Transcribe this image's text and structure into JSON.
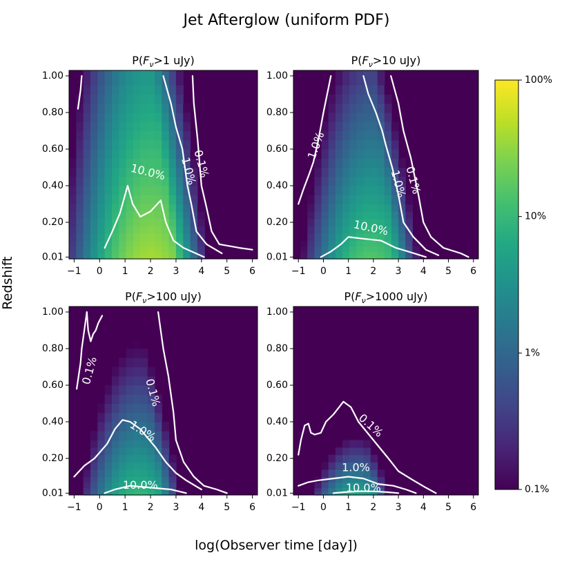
{
  "figure": {
    "title": "Jet Afterglow (uniform PDF)",
    "xlabel": "log(Observer time [day])",
    "ylabel": "Redshift"
  },
  "colorbar": {
    "scale": "log",
    "ticks": [
      {
        "value": 1.0,
        "label": "100%"
      },
      {
        "value": 0.1,
        "label": "10%"
      },
      {
        "value": 0.01,
        "label": "1%"
      },
      {
        "value": 0.001,
        "label": "0.1%"
      }
    ],
    "colormap": "viridis"
  },
  "chart_data": [
    {
      "type": "heatmap",
      "title": "P(F_ν>1 uJy)",
      "title_parts": [
        "P(",
        "F",
        "ν",
        ">1 uJy)"
      ],
      "x_ticks": [
        "−1",
        "0",
        "1",
        "2",
        "3",
        "4",
        "5",
        "6"
      ],
      "y_ticks": [
        "0.01",
        "0.20",
        "0.40",
        "0.60",
        "0.80",
        "1.00"
      ],
      "xlim": [
        -1.2,
        6.2
      ],
      "ylim": [
        0.0,
        1.03
      ],
      "center_x": 2.0,
      "width_x": 1.6,
      "upper_edge_x": 2.9,
      "upper_slope": 0.8,
      "floor_x": 4.0,
      "peak_log": -0.4,
      "z_decay": 1.0,
      "contours": [
        {
          "label": "10.0%",
          "label_at": [
            1.9,
            0.475
          ],
          "label_angle": 14,
          "points": [
            [
              0.2,
              0.06
            ],
            [
              0.5,
              0.15
            ],
            [
              0.8,
              0.25
            ],
            [
              1.1,
              0.4
            ],
            [
              1.3,
              0.3
            ],
            [
              1.6,
              0.23
            ],
            [
              2.0,
              0.26
            ],
            [
              2.4,
              0.32
            ],
            [
              2.6,
              0.2
            ],
            [
              2.9,
              0.1
            ],
            [
              3.3,
              0.06
            ],
            [
              4.1,
              0.01
            ]
          ]
        },
        {
          "label": "1.0%",
          "label_at": [
            3.5,
            0.48
          ],
          "label_angle": 75,
          "points": [
            [
              2.5,
              1.0
            ],
            [
              2.8,
              0.85
            ],
            [
              3.0,
              0.72
            ],
            [
              3.25,
              0.6
            ],
            [
              3.45,
              0.4
            ],
            [
              3.6,
              0.3
            ],
            [
              3.8,
              0.15
            ],
            [
              4.2,
              0.08
            ],
            [
              4.8,
              0.03
            ]
          ]
        },
        {
          "label": "0.1%",
          "label_at": [
            4.0,
            0.52
          ],
          "label_angle": 75,
          "points": [
            [
              3.65,
              1.0
            ],
            [
              3.7,
              0.85
            ],
            [
              3.85,
              0.65
            ],
            [
              4.0,
              0.4
            ],
            [
              4.2,
              0.28
            ],
            [
              4.4,
              0.15
            ],
            [
              4.7,
              0.08
            ],
            [
              5.5,
              0.06
            ],
            [
              6.0,
              0.05
            ]
          ]
        },
        {
          "label": "",
          "label_at": null,
          "label_angle": 0,
          "points": [
            [
              -0.85,
              0.82
            ],
            [
              -0.75,
              0.92
            ],
            [
              -0.7,
              1.0
            ]
          ]
        }
      ]
    },
    {
      "type": "heatmap",
      "title": "P(F_ν>10 uJy)",
      "title_parts": [
        "P(",
        "F",
        "ν",
        ">10 uJy)"
      ],
      "x_ticks": [
        "−1",
        "0",
        "1",
        "2",
        "3",
        "4",
        "5",
        "6"
      ],
      "y_ticks": [
        "0.01",
        "0.20",
        "0.40",
        "0.60",
        "0.80",
        "1.00"
      ],
      "xlim": [
        -1.2,
        6.2
      ],
      "ylim": [
        0.0,
        1.03
      ],
      "center_x": 1.9,
      "width_x": 1.4,
      "upper_edge_x": 2.8,
      "upper_slope": 0.8,
      "floor_x": 4.2,
      "peak_log": -0.8,
      "z_decay": 1.6,
      "contours": [
        {
          "label": "10.0%",
          "label_at": [
            1.9,
            0.17
          ],
          "label_angle": 12,
          "points": [
            [
              -0.1,
              0.01
            ],
            [
              0.3,
              0.04
            ],
            [
              0.7,
              0.08
            ],
            [
              1.0,
              0.12
            ],
            [
              1.6,
              0.11
            ],
            [
              2.3,
              0.1
            ],
            [
              2.9,
              0.06
            ],
            [
              3.4,
              0.04
            ],
            [
              4.1,
              0.01
            ]
          ]
        },
        {
          "label": "1.0%",
          "label_at": [
            -0.3,
            0.62
          ],
          "label_angle": -70,
          "points": [
            [
              -1.0,
              0.3
            ],
            [
              -0.8,
              0.38
            ],
            [
              -0.55,
              0.47
            ],
            [
              -0.4,
              0.53
            ],
            [
              -0.2,
              0.65
            ],
            [
              0.0,
              0.8
            ],
            [
              0.3,
              1.0
            ]
          ]
        },
        {
          "label": "1.0%",
          "label_at": [
            3.0,
            0.41
          ],
          "label_angle": 75,
          "points": [
            [
              1.6,
              1.0
            ],
            [
              1.8,
              0.9
            ],
            [
              2.1,
              0.8
            ],
            [
              2.35,
              0.7
            ],
            [
              2.5,
              0.62
            ],
            [
              2.75,
              0.5
            ],
            [
              3.0,
              0.35
            ],
            [
              3.2,
              0.2
            ],
            [
              3.6,
              0.12
            ],
            [
              4.1,
              0.05
            ],
            [
              4.6,
              0.02
            ]
          ]
        },
        {
          "label": "0.1%",
          "label_at": [
            3.6,
            0.43
          ],
          "label_angle": 75,
          "points": [
            [
              2.7,
              1.0
            ],
            [
              3.0,
              0.85
            ],
            [
              3.2,
              0.7
            ],
            [
              3.5,
              0.55
            ],
            [
              3.8,
              0.35
            ],
            [
              4.0,
              0.2
            ],
            [
              4.3,
              0.12
            ],
            [
              4.8,
              0.06
            ],
            [
              5.5,
              0.03
            ],
            [
              5.8,
              0.01
            ]
          ]
        }
      ]
    },
    {
      "type": "heatmap",
      "title": "P(F_ν>100 uJy)",
      "title_parts": [
        "P(",
        "F",
        "ν",
        ">100 uJy)"
      ],
      "x_ticks": [
        "−1",
        "0",
        "1",
        "2",
        "3",
        "4",
        "5",
        "6"
      ],
      "y_ticks": [
        "0.01",
        "0.20",
        "0.40",
        "0.60",
        "0.80",
        "1.00"
      ],
      "xlim": [
        -1.2,
        6.2
      ],
      "ylim": [
        0.0,
        1.03
      ],
      "center_x": 1.5,
      "width_x": 1.2,
      "upper_edge_x": 2.4,
      "upper_slope": 0.8,
      "floor_x": 4.0,
      "peak_log": -1.0,
      "z_decay": 2.4,
      "contours": [
        {
          "label": "10.0%",
          "label_at": [
            1.6,
            0.055
          ],
          "label_angle": 0,
          "points": [
            [
              0.2,
              0.01
            ],
            [
              0.6,
              0.03
            ],
            [
              1.2,
              0.05
            ],
            [
              2.0,
              0.04
            ],
            [
              2.8,
              0.03
            ],
            [
              3.4,
              0.01
            ]
          ]
        },
        {
          "label": "1.0%",
          "label_at": [
            1.7,
            0.35
          ],
          "label_angle": 32,
          "points": [
            [
              -1.0,
              0.1
            ],
            [
              -0.6,
              0.16
            ],
            [
              -0.2,
              0.2
            ],
            [
              0.3,
              0.28
            ],
            [
              0.6,
              0.36
            ],
            [
              0.9,
              0.41
            ],
            [
              1.2,
              0.4
            ],
            [
              1.6,
              0.36
            ],
            [
              2.2,
              0.26
            ],
            [
              2.6,
              0.18
            ],
            [
              3.0,
              0.12
            ],
            [
              3.4,
              0.08
            ],
            [
              4.0,
              0.03
            ]
          ]
        },
        {
          "label": "0.1%",
          "label_at": [
            -0.4,
            0.68
          ],
          "label_angle": -75,
          "points": [
            [
              -0.9,
              0.58
            ],
            [
              -0.75,
              0.72
            ],
            [
              -0.7,
              0.8
            ],
            [
              -0.6,
              0.9
            ],
            [
              -0.5,
              1.0
            ]
          ]
        },
        {
          "label": "",
          "label_at": null,
          "label_angle": 0,
          "points": [
            [
              -0.5,
              1.0
            ],
            [
              -0.45,
              0.9
            ],
            [
              -0.35,
              0.84
            ],
            [
              -0.25,
              0.88
            ],
            [
              -0.15,
              0.9
            ],
            [
              -0.05,
              0.94
            ],
            [
              0.1,
              0.98
            ]
          ]
        },
        {
          "label": "0.1%",
          "label_at": [
            2.1,
            0.56
          ],
          "label_angle": 75,
          "points": [
            [
              2.3,
              1.0
            ],
            [
              2.4,
              0.9
            ],
            [
              2.5,
              0.8
            ],
            [
              2.7,
              0.65
            ],
            [
              2.9,
              0.45
            ],
            [
              3.0,
              0.3
            ],
            [
              3.3,
              0.18
            ],
            [
              3.7,
              0.1
            ],
            [
              4.1,
              0.05
            ],
            [
              4.6,
              0.03
            ],
            [
              5.0,
              0.01
            ]
          ]
        }
      ]
    },
    {
      "type": "heatmap",
      "title": "P(F_ν>1000 uJy)",
      "title_parts": [
        "P(",
        "F",
        "ν",
        ">1000 uJy)"
      ],
      "x_ticks": [
        "−1",
        "0",
        "1",
        "2",
        "3",
        "4",
        "5",
        "6"
      ],
      "y_ticks": [
        "0.01",
        "0.20",
        "0.40",
        "0.60",
        "0.80",
        "1.00"
      ],
      "xlim": [
        -1.2,
        6.2
      ],
      "ylim": [
        0.0,
        1.03
      ],
      "center_x": 1.3,
      "width_x": 1.0,
      "upper_edge_x": 2.0,
      "upper_slope": 0.8,
      "floor_x": 3.6,
      "peak_log": -1.2,
      "z_decay": 5.5,
      "contours": [
        {
          "label": "10.0%",
          "label_at": [
            1.6,
            0.04
          ],
          "label_angle": 0,
          "points": [
            [
              0.4,
              0.01
            ],
            [
              0.8,
              0.015
            ],
            [
              1.4,
              0.02
            ],
            [
              2.0,
              0.02
            ],
            [
              2.6,
              0.015
            ],
            [
              3.0,
              0.01
            ]
          ]
        },
        {
          "label": "1.0%",
          "label_at": [
            1.3,
            0.15
          ],
          "label_angle": 0,
          "points": [
            [
              -1.0,
              0.05
            ],
            [
              -0.6,
              0.07
            ],
            [
              -0.2,
              0.08
            ],
            [
              0.4,
              0.09
            ],
            [
              1.0,
              0.1
            ],
            [
              1.6,
              0.09
            ],
            [
              2.2,
              0.06
            ],
            [
              2.8,
              0.05
            ],
            [
              3.3,
              0.03
            ],
            [
              3.7,
              0.01
            ]
          ]
        },
        {
          "label": "0.1%",
          "label_at": [
            1.9,
            0.38
          ],
          "label_angle": 42,
          "points": [
            [
              -1.0,
              0.22
            ],
            [
              -0.9,
              0.3
            ],
            [
              -0.75,
              0.38
            ],
            [
              -0.6,
              0.39
            ],
            [
              -0.5,
              0.34
            ],
            [
              -0.35,
              0.33
            ],
            [
              -0.1,
              0.34
            ],
            [
              0.1,
              0.4
            ],
            [
              0.4,
              0.44
            ],
            [
              0.8,
              0.51
            ],
            [
              1.1,
              0.48
            ],
            [
              1.4,
              0.4
            ],
            [
              2.0,
              0.3
            ],
            [
              2.6,
              0.2
            ],
            [
              3.0,
              0.13
            ],
            [
              3.6,
              0.08
            ],
            [
              4.1,
              0.04
            ],
            [
              4.5,
              0.01
            ]
          ]
        }
      ]
    }
  ]
}
